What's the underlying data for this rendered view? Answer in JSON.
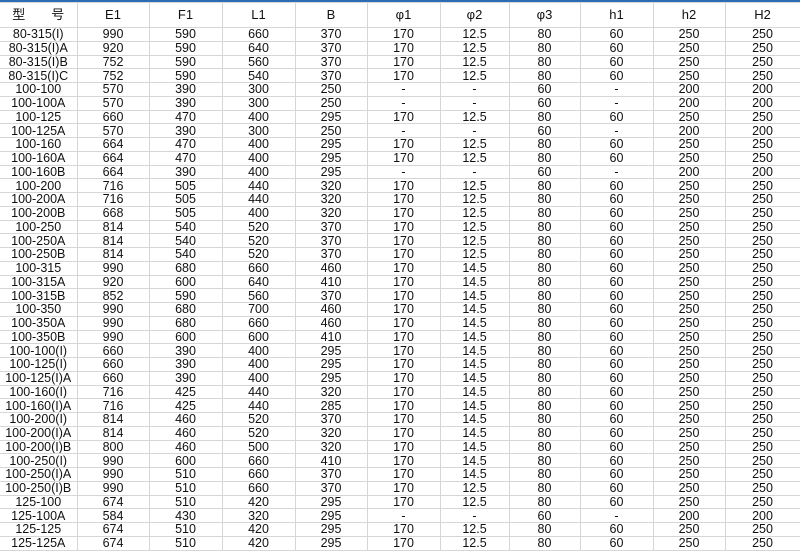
{
  "headers": [
    "型　　号",
    "E1",
    "F1",
    "L1",
    "B",
    "φ1",
    "φ2",
    "φ3",
    "h1",
    "h2",
    "H2"
  ],
  "rows": [
    [
      "80-315(I)",
      "990",
      "590",
      "660",
      "370",
      "170",
      "12.5",
      "80",
      "60",
      "250",
      "250"
    ],
    [
      "80-315(I)A",
      "920",
      "590",
      "640",
      "370",
      "170",
      "12.5",
      "80",
      "60",
      "250",
      "250"
    ],
    [
      "80-315(I)B",
      "752",
      "590",
      "560",
      "370",
      "170",
      "12.5",
      "80",
      "60",
      "250",
      "250"
    ],
    [
      "80-315(I)C",
      "752",
      "590",
      "540",
      "370",
      "170",
      "12.5",
      "80",
      "60",
      "250",
      "250"
    ],
    [
      "100-100",
      "570",
      "390",
      "300",
      "250",
      "-",
      "-",
      "60",
      "-",
      "200",
      "200"
    ],
    [
      "100-100A",
      "570",
      "390",
      "300",
      "250",
      "-",
      "-",
      "60",
      "-",
      "200",
      "200"
    ],
    [
      "100-125",
      "660",
      "470",
      "400",
      "295",
      "170",
      "12.5",
      "80",
      "60",
      "250",
      "250"
    ],
    [
      "100-125A",
      "570",
      "390",
      "300",
      "250",
      "-",
      "-",
      "60",
      "-",
      "200",
      "200"
    ],
    [
      "100-160",
      "664",
      "470",
      "400",
      "295",
      "170",
      "12.5",
      "80",
      "60",
      "250",
      "250"
    ],
    [
      "100-160A",
      "664",
      "470",
      "400",
      "295",
      "170",
      "12.5",
      "80",
      "60",
      "250",
      "250"
    ],
    [
      "100-160B",
      "664",
      "390",
      "400",
      "295",
      "-",
      "-",
      "60",
      "-",
      "200",
      "200"
    ],
    [
      "100-200",
      "716",
      "505",
      "440",
      "320",
      "170",
      "12.5",
      "80",
      "60",
      "250",
      "250"
    ],
    [
      "100-200A",
      "716",
      "505",
      "440",
      "320",
      "170",
      "12.5",
      "80",
      "60",
      "250",
      "250"
    ],
    [
      "100-200B",
      "668",
      "505",
      "400",
      "320",
      "170",
      "12.5",
      "80",
      "60",
      "250",
      "250"
    ],
    [
      "100-250",
      "814",
      "540",
      "520",
      "370",
      "170",
      "12.5",
      "80",
      "60",
      "250",
      "250"
    ],
    [
      "100-250A",
      "814",
      "540",
      "520",
      "370",
      "170",
      "12.5",
      "80",
      "60",
      "250",
      "250"
    ],
    [
      "100-250B",
      "814",
      "540",
      "520",
      "370",
      "170",
      "12.5",
      "80",
      "60",
      "250",
      "250"
    ],
    [
      "100-315",
      "990",
      "680",
      "660",
      "460",
      "170",
      "14.5",
      "80",
      "60",
      "250",
      "250"
    ],
    [
      "100-315A",
      "920",
      "600",
      "640",
      "410",
      "170",
      "14.5",
      "80",
      "60",
      "250",
      "250"
    ],
    [
      "100-315B",
      "852",
      "590",
      "560",
      "370",
      "170",
      "14.5",
      "80",
      "60",
      "250",
      "250"
    ],
    [
      "100-350",
      "990",
      "680",
      "700",
      "460",
      "170",
      "14.5",
      "80",
      "60",
      "250",
      "250"
    ],
    [
      "100-350A",
      "990",
      "680",
      "660",
      "460",
      "170",
      "14.5",
      "80",
      "60",
      "250",
      "250"
    ],
    [
      "100-350B",
      "990",
      "600",
      "600",
      "410",
      "170",
      "14.5",
      "80",
      "60",
      "250",
      "250"
    ],
    [
      "100-100(I)",
      "660",
      "390",
      "400",
      "295",
      "170",
      "14.5",
      "80",
      "60",
      "250",
      "250"
    ],
    [
      "100-125(I)",
      "660",
      "390",
      "400",
      "295",
      "170",
      "14.5",
      "80",
      "60",
      "250",
      "250"
    ],
    [
      "100-125(I)A",
      "660",
      "390",
      "400",
      "295",
      "170",
      "14.5",
      "80",
      "60",
      "250",
      "250"
    ],
    [
      "100-160(I)",
      "716",
      "425",
      "440",
      "320",
      "170",
      "14.5",
      "80",
      "60",
      "250",
      "250"
    ],
    [
      "100-160(I)A",
      "716",
      "425",
      "440",
      "285",
      "170",
      "14.5",
      "80",
      "60",
      "250",
      "250"
    ],
    [
      "100-200(I)",
      "814",
      "460",
      "520",
      "370",
      "170",
      "14.5",
      "80",
      "60",
      "250",
      "250"
    ],
    [
      "100-200(I)A",
      "814",
      "460",
      "520",
      "320",
      "170",
      "14.5",
      "80",
      "60",
      "250",
      "250"
    ],
    [
      "100-200(I)B",
      "800",
      "460",
      "500",
      "320",
      "170",
      "14.5",
      "80",
      "60",
      "250",
      "250"
    ],
    [
      "100-250(I)",
      "990",
      "600",
      "660",
      "410",
      "170",
      "14.5",
      "80",
      "60",
      "250",
      "250"
    ],
    [
      "100-250(I)A",
      "990",
      "510",
      "660",
      "370",
      "170",
      "14.5",
      "80",
      "60",
      "250",
      "250"
    ],
    [
      "100-250(I)B",
      "990",
      "510",
      "660",
      "370",
      "170",
      "12.5",
      "80",
      "60",
      "250",
      "250"
    ],
    [
      "125-100",
      "674",
      "510",
      "420",
      "295",
      "170",
      "12.5",
      "80",
      "60",
      "250",
      "250"
    ],
    [
      "125-100A",
      "584",
      "430",
      "320",
      "295",
      "-",
      "-",
      "60",
      "-",
      "200",
      "200"
    ],
    [
      "125-125",
      "674",
      "510",
      "420",
      "295",
      "170",
      "12.5",
      "80",
      "60",
      "250",
      "250"
    ],
    [
      "125-125A",
      "674",
      "510",
      "420",
      "295",
      "170",
      "12.5",
      "80",
      "60",
      "250",
      "250"
    ]
  ]
}
